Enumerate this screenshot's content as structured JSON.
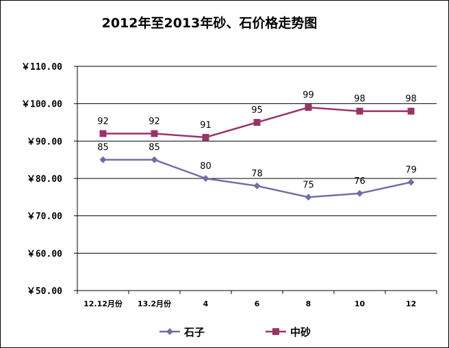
{
  "chart_data": {
    "type": "line",
    "title": "2012年至2013年砂、石价格走势图",
    "categories": [
      "12.12月份",
      "13.2月份",
      "4",
      "6",
      "8",
      "10",
      "12"
    ],
    "yticks": [
      "￥50.00",
      "￥60.00",
      "￥70.00",
      "￥80.00",
      "￥90.00",
      "￥100.00",
      "￥110.00"
    ],
    "ylim": [
      50,
      110
    ],
    "grid": true,
    "legend_position": "bottom",
    "series": [
      {
        "name": "石子",
        "values": [
          85,
          85,
          80,
          78,
          75,
          76,
          79
        ],
        "color": "#6F6FA5",
        "marker": "diamond"
      },
      {
        "name": "中砂",
        "values": [
          92,
          92,
          91,
          95,
          99,
          98,
          98
        ],
        "color": "#993366",
        "marker": "square"
      }
    ]
  }
}
